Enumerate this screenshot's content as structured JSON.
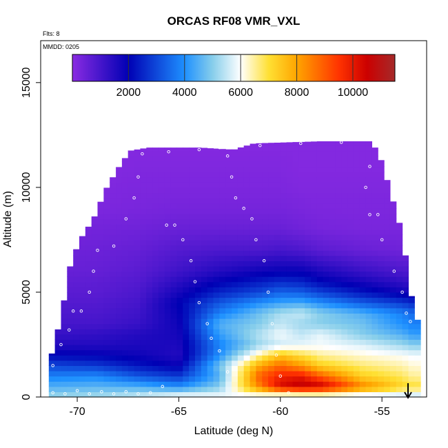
{
  "chart_data": {
    "type": "heatmap",
    "title": "ORCAS RF08 VMR_VXL",
    "annotations": {
      "flights": "Flts: 8",
      "date": "MMDD: 0205"
    },
    "xlabel": "Latitude (deg N)",
    "ylabel": "Altitude (m)",
    "xlim": [
      -71.8,
      -52.8
    ],
    "ylim": [
      0,
      17000
    ],
    "xticks": [
      -70,
      -65,
      -60,
      -55
    ],
    "yticks": [
      0,
      5000,
      10000,
      15000
    ],
    "colorbar": {
      "range": [
        0,
        11500
      ],
      "ticks": [
        2000,
        4000,
        6000,
        8000,
        10000
      ],
      "stops": [
        {
          "v": 0,
          "c": "#8a2be2"
        },
        {
          "v": 2000,
          "c": "#0000b4"
        },
        {
          "v": 4000,
          "c": "#1e90ff"
        },
        {
          "v": 5000,
          "c": "#87ceeb"
        },
        {
          "v": 6000,
          "c": "#ffffff"
        },
        {
          "v": 7000,
          "c": "#ffe033"
        },
        {
          "v": 8000,
          "c": "#ffa500"
        },
        {
          "v": 9500,
          "c": "#ff3300"
        },
        {
          "v": 10500,
          "c": "#cc0000"
        },
        {
          "v": 11500,
          "c": "#a52a2a"
        }
      ]
    },
    "envelope": {
      "lat": [
        -71.4,
        -70.8,
        -70.3,
        -69.8,
        -69.2,
        -68.6,
        -68.0,
        -67.4,
        -66.5,
        -64.0,
        -62.3,
        -61.3,
        -58.0,
        -55.5,
        -55.0,
        -54.5,
        -54.0,
        -53.6,
        -53.2
      ],
      "top_m": [
        1500,
        3800,
        6500,
        7600,
        8500,
        9900,
        10900,
        11750,
        11900,
        11900,
        11800,
        12100,
        12200,
        12200,
        11200,
        9500,
        7800,
        5000,
        3500
      ]
    },
    "field": {
      "alt_m": [
        0,
        500,
        1000,
        1500,
        2000,
        2500,
        3000,
        3500,
        4000,
        4500,
        5000,
        5500,
        6000,
        7000,
        8000,
        9000,
        10000,
        11000,
        12000
      ],
      "lat": [
        -71.5,
        -69,
        -67,
        -65,
        -63,
        -61,
        -60,
        -59,
        -58,
        -56,
        -54,
        -53.5
      ],
      "values": [
        [
          5200,
          5300,
          5600,
          6200,
          6000,
          5500,
          5000,
          5000,
          5100,
          5200,
          5300,
          5300
        ],
        [
          4500,
          4600,
          4500,
          4000,
          5000,
          8500,
          10300,
          10800,
          10600,
          8500,
          7200,
          7000
        ],
        [
          3800,
          3900,
          3200,
          2800,
          4500,
          9000,
          9800,
          10000,
          9000,
          7300,
          6800,
          6500
        ],
        [
          3000,
          2800,
          2300,
          1900,
          4800,
          8000,
          8800,
          8200,
          7300,
          6700,
          6400,
          6200
        ],
        [
          2100,
          2000,
          1800,
          1500,
          4000,
          6500,
          7500,
          7000,
          6500,
          6200,
          6000,
          5900
        ],
        [
          1500,
          1500,
          1600,
          1600,
          3800,
          5200,
          5600,
          5800,
          5900,
          5700,
          5200,
          5000
        ],
        [
          1200,
          1300,
          1500,
          1700,
          4200,
          5400,
          5900,
          5500,
          5800,
          5000,
          4500,
          4200
        ],
        [
          1000,
          1000,
          1200,
          1800,
          4500,
          5000,
          5500,
          5200,
          5000,
          4800,
          4000,
          3800
        ],
        [
          900,
          900,
          1100,
          1900,
          3800,
          4800,
          5300,
          5500,
          5000,
          4500,
          3800,
          3500
        ],
        [
          800,
          800,
          1000,
          2000,
          3200,
          4000,
          4300,
          4400,
          4000,
          3300,
          2800,
          2600
        ],
        [
          700,
          700,
          900,
          1700,
          2500,
          3000,
          3400,
          3300,
          2900,
          2300,
          1800,
          1600
        ],
        [
          600,
          650,
          800,
          1400,
          2000,
          2400,
          2600,
          2500,
          2100,
          1700,
          1300,
          1200
        ],
        [
          500,
          550,
          700,
          1100,
          1500,
          1800,
          1900,
          1900,
          1600,
          1200,
          900,
          900
        ],
        [
          400,
          450,
          550,
          800,
          900,
          900,
          1000,
          900,
          700,
          500,
          400,
          400
        ],
        [
          300,
          350,
          400,
          500,
          500,
          500,
          500,
          400,
          300,
          250,
          250,
          250
        ],
        [
          200,
          200,
          250,
          300,
          300,
          300,
          300,
          250,
          200,
          200,
          200,
          200
        ],
        [
          150,
          150,
          200,
          200,
          200,
          200,
          200,
          150,
          150,
          150,
          150,
          150
        ],
        [
          100,
          100,
          150,
          150,
          150,
          150,
          150,
          100,
          100,
          100,
          100,
          100
        ],
        [
          100,
          100,
          100,
          100,
          100,
          100,
          100,
          100,
          100,
          100,
          100,
          100
        ]
      ]
    },
    "flight_track": [
      [
        -71.2,
        200
      ],
      [
        -70.6,
        150
      ],
      [
        -70.0,
        300
      ],
      [
        -69.4,
        150
      ],
      [
        -68.8,
        250
      ],
      [
        -68.2,
        150
      ],
      [
        -67.6,
        250
      ],
      [
        -67.0,
        150
      ],
      [
        -66.4,
        200
      ],
      [
        -65.8,
        500
      ],
      [
        -71.2,
        1500
      ],
      [
        -70.8,
        2500
      ],
      [
        -70.4,
        3200
      ],
      [
        -70.2,
        4100
      ],
      [
        -69.8,
        4100
      ],
      [
        -69.4,
        5000
      ],
      [
        -69.2,
        6000
      ],
      [
        -69.0,
        7000
      ],
      [
        -68.2,
        7200
      ],
      [
        -67.6,
        8500
      ],
      [
        -67.2,
        9500
      ],
      [
        -67.0,
        10500
      ],
      [
        -66.8,
        11600
      ],
      [
        -65.5,
        11700
      ],
      [
        -64.0,
        11800
      ],
      [
        -63.0,
        11900
      ],
      [
        -62.6,
        11500
      ],
      [
        -62.4,
        10500
      ],
      [
        -62.2,
        9500
      ],
      [
        -61.8,
        9000
      ],
      [
        -61.4,
        8500
      ],
      [
        -61.2,
        7500
      ],
      [
        -60.8,
        6500
      ],
      [
        -60.6,
        5000
      ],
      [
        -60.4,
        3500
      ],
      [
        -60.2,
        2000
      ],
      [
        -60.0,
        1000
      ],
      [
        -59.6,
        200
      ],
      [
        -61.0,
        12000
      ],
      [
        -59.0,
        12100
      ],
      [
        -57.0,
        12150
      ],
      [
        -55.4,
        12200
      ],
      [
        -55.6,
        11000
      ],
      [
        -55.8,
        10000
      ],
      [
        -55.6,
        8700
      ],
      [
        -55.2,
        8700
      ],
      [
        -55.0,
        7500
      ],
      [
        -54.4,
        6000
      ],
      [
        -54.0,
        5000
      ],
      [
        -53.8,
        4000
      ],
      [
        -53.6,
        3600
      ],
      [
        -65.6,
        8200
      ],
      [
        -65.2,
        8200
      ],
      [
        -64.8,
        7500
      ],
      [
        -64.4,
        6500
      ],
      [
        -64.2,
        5500
      ],
      [
        -64.0,
        4500
      ],
      [
        -63.6,
        3500
      ],
      [
        -63.4,
        2800
      ],
      [
        -63.0,
        2200
      ],
      [
        -62.6,
        1200
      ]
    ]
  }
}
